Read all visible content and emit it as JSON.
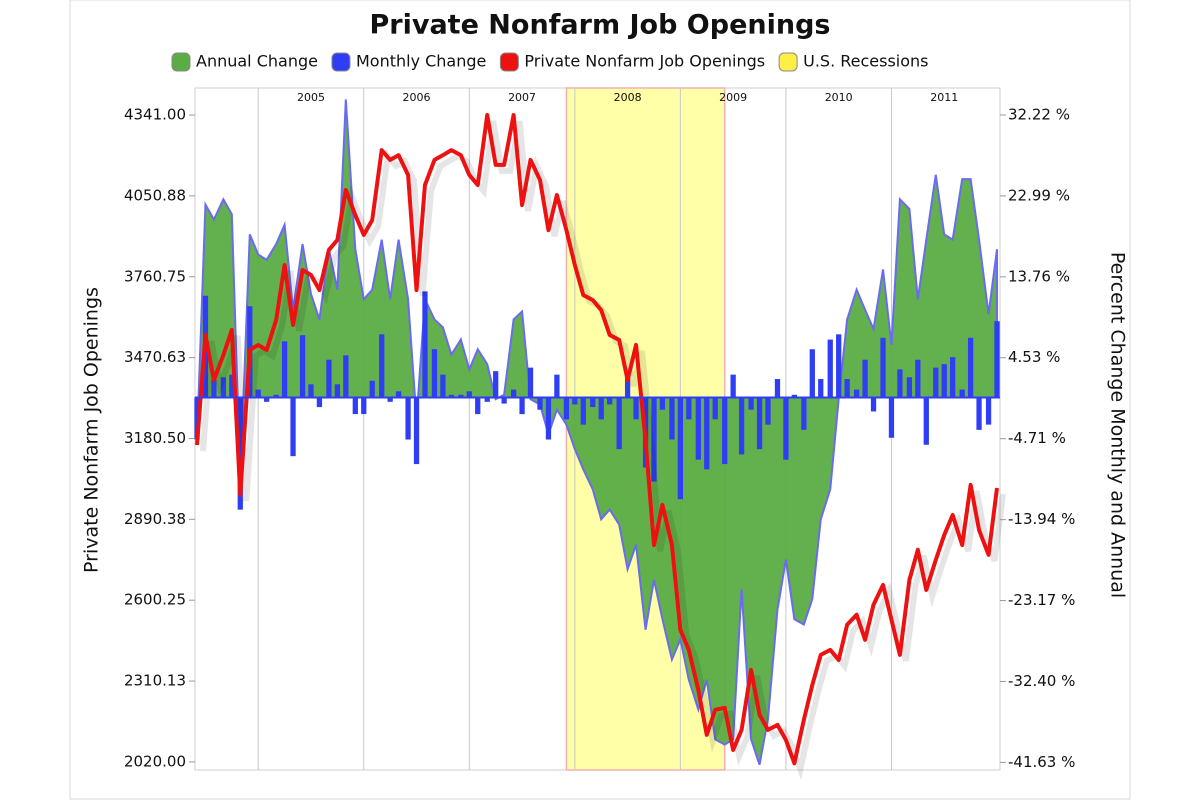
{
  "chart_data": {
    "type": "combo",
    "title": "Private Nonfarm Job Openings",
    "y_label": "Private Nonfarm Job Openings",
    "y2_label": "Percent Change Monthly and Annual",
    "x": [
      2004.42,
      2004.5,
      2004.58,
      2004.67,
      2004.75,
      2004.83,
      2004.92,
      2005.0,
      2005.08,
      2005.17,
      2005.25,
      2005.33,
      2005.42,
      2005.5,
      2005.58,
      2005.67,
      2005.75,
      2005.83,
      2005.92,
      2006.0,
      2006.08,
      2006.17,
      2006.25,
      2006.33,
      2006.42,
      2006.5,
      2006.58,
      2006.67,
      2006.75,
      2006.83,
      2006.92,
      2007.0,
      2007.08,
      2007.17,
      2007.25,
      2007.33,
      2007.42,
      2007.5,
      2007.58,
      2007.67,
      2007.75,
      2007.83,
      2007.92,
      2008.0,
      2008.08,
      2008.17,
      2008.25,
      2008.33,
      2008.42,
      2008.5,
      2008.58,
      2008.67,
      2008.75,
      2008.83,
      2008.92,
      2009.0,
      2009.08,
      2009.17,
      2009.25,
      2009.33,
      2009.42,
      2009.5,
      2009.58,
      2009.67,
      2009.75,
      2009.83,
      2009.92,
      2010.0,
      2010.08,
      2010.17,
      2010.25,
      2010.33,
      2010.42,
      2010.5,
      2010.58,
      2010.67,
      2010.75,
      2010.83,
      2010.92,
      2011.0,
      2011.08,
      2011.17,
      2011.25,
      2011.33,
      2011.42,
      2011.5,
      2011.58,
      2011.67,
      2011.75,
      2011.83,
      2011.92,
      2012.0
    ],
    "xlim": [
      2004.42,
      2012.0
    ],
    "xticks": [
      {
        "value": 2005,
        "label": "2005"
      },
      {
        "value": 2006,
        "label": "2006"
      },
      {
        "value": 2007,
        "label": "2007"
      },
      {
        "value": 2008,
        "label": "2008"
      },
      {
        "value": 2009,
        "label": "2009"
      },
      {
        "value": 2010,
        "label": "2010"
      },
      {
        "value": 2011,
        "label": "2011"
      }
    ],
    "ylim": [
      1991,
      4438
    ],
    "yticks": [
      {
        "value": 4341,
        "label": "4341.00"
      },
      {
        "value": 4050.88,
        "label": "4050.88"
      },
      {
        "value": 3760.75,
        "label": "3760.75"
      },
      {
        "value": 3470.63,
        "label": "3470.63"
      },
      {
        "value": 3180.5,
        "label": "3180.50"
      },
      {
        "value": 2890.38,
        "label": "2890.38"
      },
      {
        "value": 2600.25,
        "label": "2600.25"
      },
      {
        "value": 2310.13,
        "label": "2310.13"
      },
      {
        "value": 2020,
        "label": "2020.00"
      }
    ],
    "y2lim": [
      -42.5,
      35.3
    ],
    "y2ticks": [
      {
        "value": 32.22,
        "label": "32.22 %"
      },
      {
        "value": 22.99,
        "label": "22.99 %"
      },
      {
        "value": 13.76,
        "label": "13.76 %"
      },
      {
        "value": 4.53,
        "label": "4.53 %"
      },
      {
        "value": -4.71,
        "label": "-4.71 %"
      },
      {
        "value": -13.94,
        "label": "-13.94 %"
      },
      {
        "value": -23.17,
        "label": "-23.17 %"
      },
      {
        "value": -32.4,
        "label": "-32.40 %"
      },
      {
        "value": -41.63,
        "label": "-41.63 %"
      }
    ],
    "grid": true,
    "bands": [
      {
        "name": "U.S. Recessions",
        "color": "#ffffa8",
        "from": 2007.92,
        "to": 2009.42
      }
    ],
    "series": [
      {
        "name": "Annual Change",
        "type": "area",
        "axis": "y2",
        "color": "#5aac44",
        "values": [
          -4.8,
          22.0,
          20.3,
          22.6,
          20.9,
          -9.4,
          18.6,
          16.3,
          15.7,
          17.5,
          19.7,
          10.0,
          17.5,
          11.8,
          8.9,
          16.9,
          12.3,
          34.0,
          16.9,
          11.2,
          12.3,
          18.0,
          11.2,
          18.0,
          11.2,
          -2.5,
          11.2,
          8.9,
          8.0,
          4.9,
          6.6,
          3.2,
          5.5,
          3.8,
          -0.2,
          0.3,
          8.9,
          9.8,
          -0.2,
          -0.8,
          -4.2,
          -1.4,
          -3.1,
          -5.9,
          -8.2,
          -10.5,
          -13.9,
          -12.8,
          -14.5,
          -19.6,
          -16.8,
          -26.5,
          -20.8,
          -25.3,
          -29.9,
          -27.6,
          -32.2,
          -35.6,
          -32.2,
          -39.0,
          -39.6,
          -39.0,
          -21.9,
          -39.0,
          -41.9,
          -36.7,
          -24.2,
          -18.5,
          -25.3,
          -25.9,
          -23.0,
          -13.9,
          -10.5,
          -0.2,
          8.9,
          12.3,
          10.0,
          7.8,
          14.6,
          6.0,
          22.6,
          21.5,
          11.2,
          18.0,
          25.4,
          18.6,
          18.0,
          24.9,
          24.9,
          18.0,
          9.5,
          16.9
        ]
      },
      {
        "name": "Monthly Change",
        "type": "bar",
        "axis": "y2",
        "color": "#2f3ef5",
        "values": [
          -4.8,
          11.6,
          2.0,
          2.3,
          2.6,
          -12.8,
          10.4,
          0.9,
          -0.5,
          0.3,
          6.4,
          -6.7,
          7.1,
          1.5,
          -1.1,
          4.3,
          1.5,
          4.8,
          -1.9,
          -1.9,
          1.9,
          7.2,
          -0.5,
          0.7,
          -4.8,
          -7.6,
          12.1,
          5.5,
          2.6,
          0.3,
          0.3,
          0.7,
          -1.9,
          -0.5,
          3.0,
          -0.7,
          0.9,
          -1.9,
          3.4,
          -1.4,
          -4.8,
          2.6,
          -2.5,
          -0.8,
          -3.1,
          -1.1,
          -2.5,
          -0.8,
          -5.9,
          3.0,
          -2.5,
          -8.0,
          -9.6,
          -1.4,
          -4.8,
          -11.6,
          -2.5,
          -7.1,
          -8.2,
          -2.5,
          -7.6,
          2.6,
          -6.5,
          -1.4,
          -5.9,
          -3.1,
          2.1,
          -7.1,
          0.3,
          -3.7,
          5.5,
          2.1,
          6.6,
          7.2,
          2.1,
          0.9,
          4.3,
          -1.6,
          6.8,
          -4.6,
          3.2,
          2.3,
          4.3,
          -5.4,
          3.4,
          3.8,
          4.6,
          0.9,
          6.8,
          -3.7,
          -3.1,
          8.7
        ]
      },
      {
        "name": "Private Nonfarm Job Openings",
        "type": "line",
        "axis": "y",
        "color": "#ee1111",
        "values": [
          3157,
          3552,
          3390,
          3480,
          3570,
          2978,
          3498,
          3516,
          3498,
          3606,
          3803,
          3588,
          3785,
          3767,
          3713,
          3857,
          3893,
          4072,
          3982,
          3911,
          3964,
          4215,
          4180,
          4197,
          4126,
          3713,
          4090,
          4180,
          4197,
          4215,
          4197,
          4126,
          4090,
          4341,
          4162,
          4162,
          4341,
          4018,
          4180,
          4108,
          3928,
          4054,
          3928,
          3803,
          3695,
          3677,
          3641,
          3552,
          3534,
          3390,
          3516,
          3175,
          2798,
          2942,
          2798,
          2494,
          2422,
          2278,
          2117,
          2207,
          2214,
          2063,
          2135,
          2350,
          2189,
          2135,
          2153,
          2099,
          2015,
          2171,
          2296,
          2404,
          2422,
          2386,
          2512,
          2548,
          2458,
          2584,
          2655,
          2530,
          2404,
          2673,
          2781,
          2637,
          2745,
          2834,
          2906,
          2798,
          3014,
          2852,
          2763,
          3003
        ]
      }
    ]
  }
}
